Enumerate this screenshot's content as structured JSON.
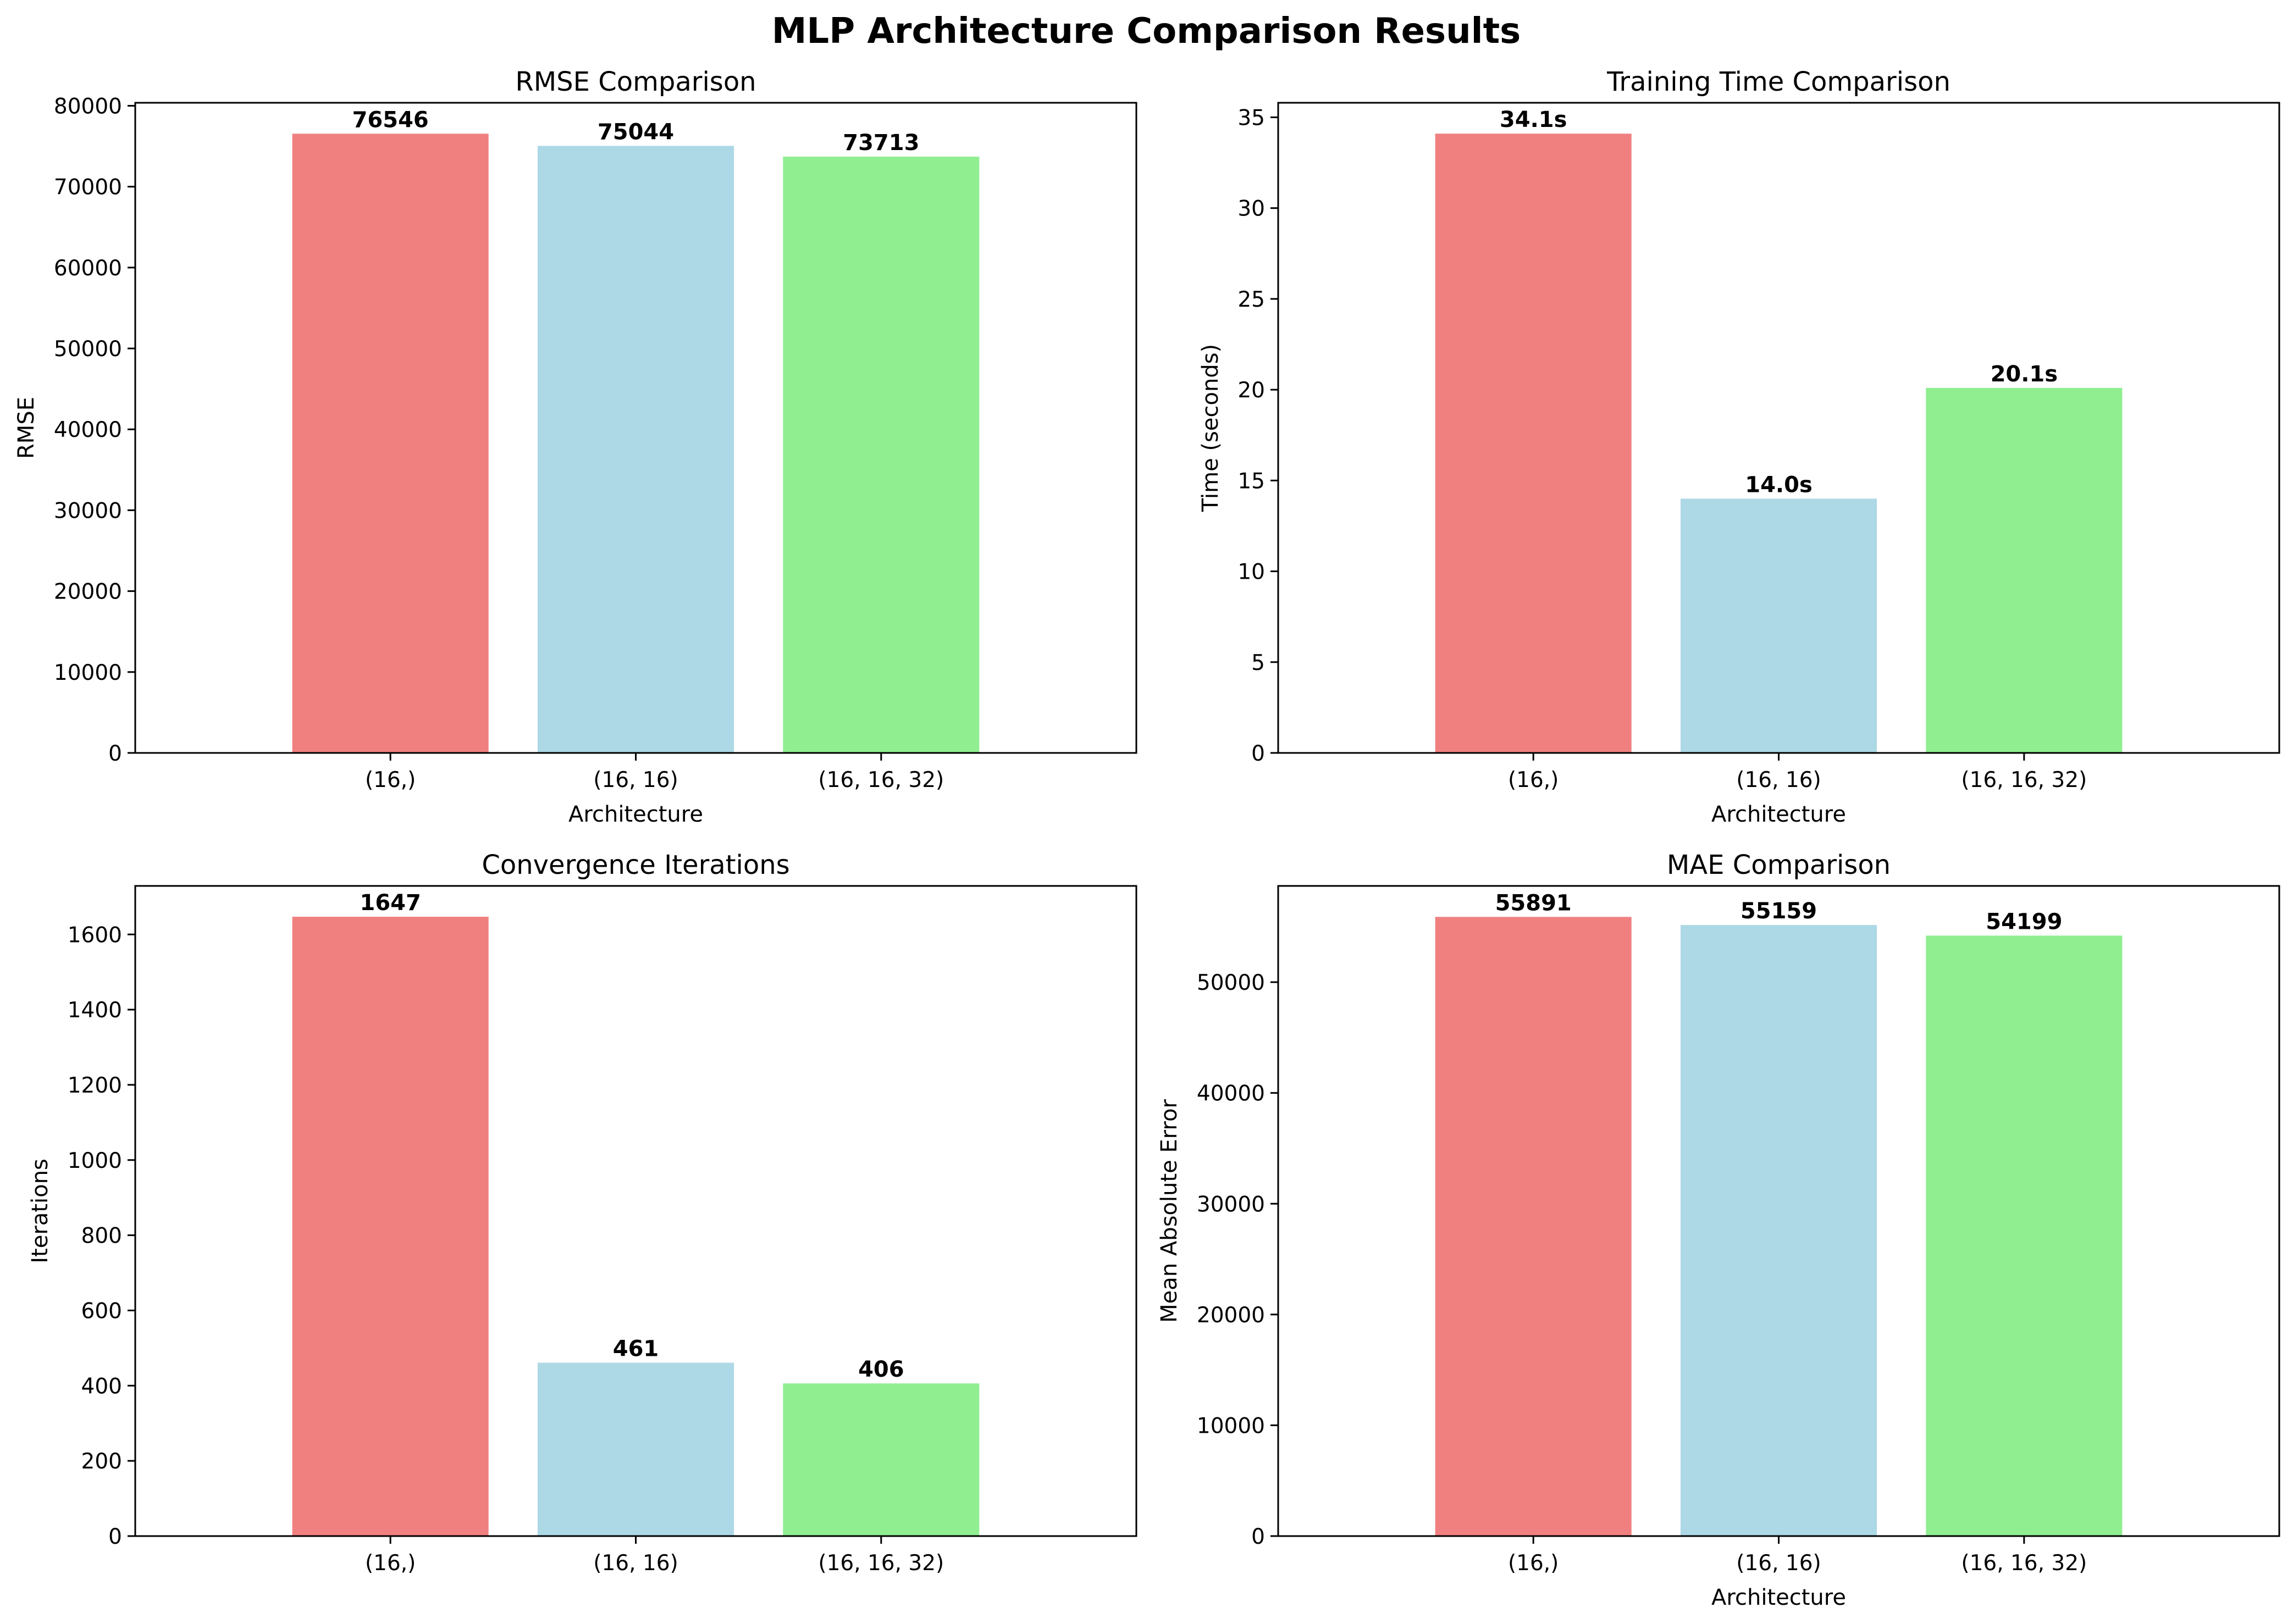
{
  "figure": {
    "suptitle": "MLP Architecture Comparison Results"
  },
  "chart_data": [
    {
      "type": "bar",
      "title": "RMSE Comparison",
      "xlabel": "Architecture",
      "ylabel": "RMSE",
      "categories": [
        "(16,)",
        "(16, 16)",
        "(16, 16, 32)"
      ],
      "values": [
        76546,
        75044,
        73713
      ],
      "data_labels": [
        "76546",
        "75044",
        "73713"
      ],
      "colors": [
        "#f08080",
        "#add8e6",
        "#90ee90"
      ],
      "ylim": [
        0,
        80372
      ],
      "yticks": [
        0,
        10000,
        20000,
        30000,
        40000,
        50000,
        60000,
        70000,
        80000
      ],
      "ytick_labels": [
        "0",
        "10000",
        "20000",
        "30000",
        "40000",
        "50000",
        "60000",
        "70000",
        "80000"
      ],
      "grid": false,
      "legend": "none"
    },
    {
      "type": "bar",
      "title": "Training Time Comparison",
      "xlabel": "Architecture",
      "ylabel": "Time (seconds)",
      "categories": [
        "(16,)",
        "(16, 16)",
        "(16, 16, 32)"
      ],
      "values": [
        34.1,
        14.0,
        20.1
      ],
      "data_labels": [
        "34.1s",
        "14.0s",
        "20.1s"
      ],
      "colors": [
        "#f08080",
        "#add8e6",
        "#90ee90"
      ],
      "ylim": [
        0,
        35.8
      ],
      "yticks": [
        0,
        5,
        10,
        15,
        20,
        25,
        30,
        35
      ],
      "ytick_labels": [
        "0",
        "5",
        "10",
        "15",
        "20",
        "25",
        "30",
        "35"
      ],
      "grid": false,
      "legend": "none"
    },
    {
      "type": "bar",
      "title": "Convergence Iterations",
      "xlabel": "",
      "ylabel": "Iterations",
      "categories": [
        "(16,)",
        "(16, 16)",
        "(16, 16, 32)"
      ],
      "values": [
        1647,
        461,
        406
      ],
      "data_labels": [
        "1647",
        "461",
        "406"
      ],
      "colors": [
        "#f08080",
        "#add8e6",
        "#90ee90"
      ],
      "ylim": [
        0,
        1729
      ],
      "yticks": [
        0,
        200,
        400,
        600,
        800,
        1000,
        1200,
        1400,
        1600
      ],
      "ytick_labels": [
        "0",
        "200",
        "400",
        "600",
        "800",
        "1000",
        "1200",
        "1400",
        "1600"
      ],
      "grid": false,
      "legend": "none"
    },
    {
      "type": "bar",
      "title": "MAE Comparison",
      "xlabel": "Architecture",
      "ylabel": "Mean Absolute Error",
      "categories": [
        "(16,)",
        "(16, 16)",
        "(16, 16, 32)"
      ],
      "values": [
        55891,
        55159,
        54199
      ],
      "data_labels": [
        "55891",
        "55159",
        "54199"
      ],
      "colors": [
        "#f08080",
        "#add8e6",
        "#90ee90"
      ],
      "ylim": [
        0,
        58686
      ],
      "yticks": [
        0,
        10000,
        20000,
        30000,
        40000,
        50000
      ],
      "ytick_labels": [
        "0",
        "10000",
        "20000",
        "30000",
        "40000",
        "50000"
      ],
      "grid": false,
      "legend": "none"
    }
  ]
}
